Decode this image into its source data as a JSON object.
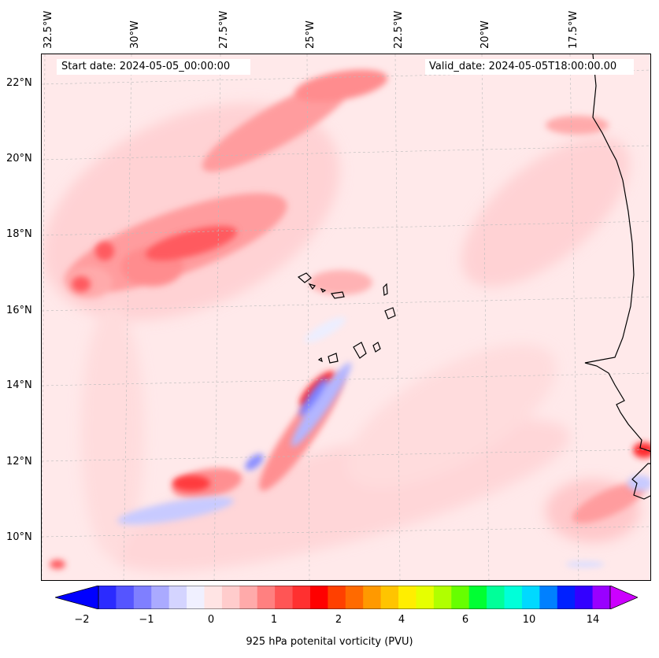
{
  "header": {
    "start_date": "Start date: 2024-05-05_00:00:00",
    "valid_date": "Valid_date: 2024-05-05T18:00:00.00"
  },
  "axes": {
    "lon_labels": [
      "32.5°W",
      "30°W",
      "27.5°W",
      "25°W",
      "22.5°W",
      "20°W",
      "17.5°W"
    ],
    "lat_labels": [
      "22°N",
      "20°N",
      "18°N",
      "16°N",
      "14°N",
      "12°N",
      "10°N"
    ]
  },
  "colorbar": {
    "ticks": [
      "−2",
      "−1",
      "0",
      "1",
      "2",
      "4",
      "6",
      "10",
      "14"
    ],
    "label": "925 hPa potenital vorticity (PVU)",
    "colors": [
      "#0000ff",
      "#2b2bff",
      "#5555ff",
      "#7f7fff",
      "#aaaaff",
      "#d4d4ff",
      "#f0f0ff",
      "#ffe4e4",
      "#ffcccc",
      "#ffaaaa",
      "#ff8080",
      "#ff5555",
      "#ff3030",
      "#ff0000",
      "#ff4000",
      "#ff6a00",
      "#ff9900",
      "#ffc400",
      "#ffee00",
      "#e6ff00",
      "#b0ff00",
      "#66ff00",
      "#00ff33",
      "#00ff99",
      "#00ffd9",
      "#00d9ff",
      "#0080ff",
      "#0020ff",
      "#3300ff",
      "#9900ff",
      "#cc00ff"
    ]
  },
  "map": {
    "background": "#ffe9ea",
    "coastline_color": "#000000",
    "gridline_color": "#bbbbbb"
  }
}
